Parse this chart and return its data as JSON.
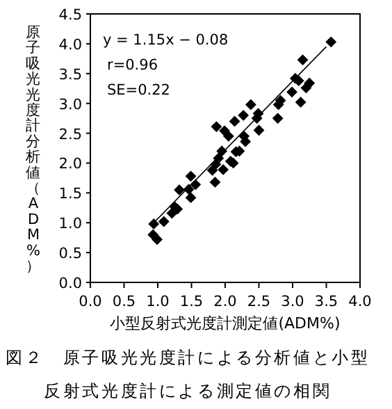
{
  "chart_data": {
    "type": "scatter",
    "title": "図２　原子吸光光度計による分析値と小型反射式光度計による測定値の相関",
    "xlabel": "小型反射式光度計測定値(ADM%)",
    "ylabel": "原子吸光光度計分析値（ADM%）",
    "annotations": [
      "y = 1.15x − 0.08",
      "r=0.96",
      "SE=0.22"
    ],
    "xlim": [
      0,
      4
    ],
    "xticks": [
      {
        "value": 0,
        "label": "0.0"
      },
      {
        "value": 0.5,
        "label": "0.5"
      },
      {
        "value": 1,
        "label": "1.0"
      },
      {
        "value": 1.5,
        "label": "1.5"
      },
      {
        "value": 2,
        "label": "2.0"
      },
      {
        "value": 2.5,
        "label": "2.5"
      },
      {
        "value": 3,
        "label": "3.0"
      },
      {
        "value": 3.5,
        "label": "3.5"
      },
      {
        "value": 4,
        "label": "4.0"
      }
    ],
    "ylim": [
      0,
      4.5
    ],
    "yticks": [
      {
        "value": 0,
        "label": "0.0"
      },
      {
        "value": 0.5,
        "label": "0.5"
      },
      {
        "value": 1,
        "label": "1.0"
      },
      {
        "value": 1.5,
        "label": "1.5"
      },
      {
        "value": 2,
        "label": "2.0"
      },
      {
        "value": 2.5,
        "label": "2.5"
      },
      {
        "value": 3,
        "label": "3.0"
      },
      {
        "value": 3.5,
        "label": "3.5"
      },
      {
        "value": 4,
        "label": "4.0"
      },
      {
        "value": 4.5,
        "label": "4.5"
      }
    ],
    "grid": false,
    "marker": "diamond",
    "series": [
      {
        "color": "#000000",
        "x": [
          0.94,
          0.93,
          0.99,
          1.09,
          1.21,
          1.25,
          1.29,
          1.32,
          1.46,
          1.49,
          1.49,
          1.56,
          1.85,
          1.81,
          1.86,
          1.87,
          1.95,
          1.97,
          1.99,
          2.05,
          2.08,
          2.14,
          2.16,
          2.21,
          2.27,
          2.28,
          2.3,
          2.38,
          2.47,
          2.49,
          2.5,
          2.78,
          2.82,
          2.79,
          2.99,
          3.04,
          3.12,
          3.15,
          3.09,
          3.2,
          3.25,
          3.57,
          1.9,
          2.12
        ],
        "values": [
          0.98,
          0.8,
          0.72,
          1.02,
          1.16,
          1.27,
          1.23,
          1.55,
          1.56,
          1.78,
          1.42,
          1.64,
          1.68,
          1.88,
          1.98,
          2.61,
          2.2,
          1.89,
          2.54,
          2.45,
          2.03,
          2.7,
          2.19,
          2.2,
          2.8,
          2.45,
          2.36,
          2.98,
          2.75,
          2.83,
          2.55,
          2.75,
          3.05,
          2.98,
          3.19,
          3.42,
          3.02,
          3.73,
          3.38,
          3.26,
          3.34,
          4.03,
          2.08,
          2.0
        ]
      },
      {
        "type": "line",
        "color": "#000000",
        "marker": "none",
        "x": [
          0.95,
          3.5
        ],
        "values": [
          1.01,
          3.95
        ]
      }
    ]
  }
}
